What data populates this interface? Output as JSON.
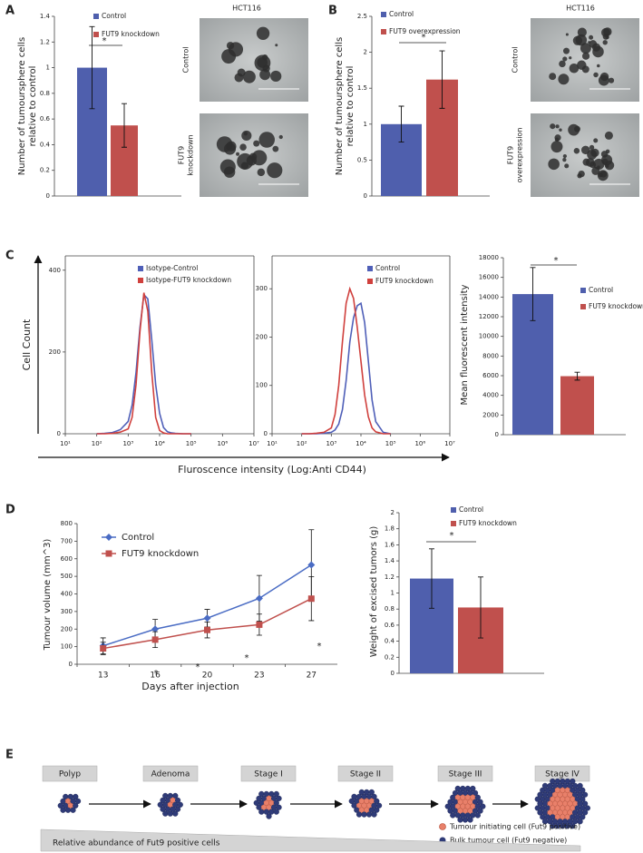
{
  "panels": [
    "A",
    "B",
    "C",
    "D",
    "E"
  ],
  "micrographs": [
    {
      "title": "HCT116",
      "labels": [
        [
          "Control"
        ],
        [
          "FUT9",
          "knockdown"
        ]
      ]
    },
    {
      "title": "HCT116",
      "labels": [
        [
          "Control"
        ],
        [
          "FUT9",
          "overexpression"
        ]
      ]
    }
  ],
  "panel_c": {
    "ylabel": "Cell Count",
    "xlabel": "Fluroscence intensity (Log:Anti CD44)"
  },
  "chart_data": [
    {
      "type": "bar",
      "ylabel": [
        "Number of tumoursphere cells",
        "relative to control"
      ],
      "series": [
        {
          "name": "Control",
          "color": "#4f5fad",
          "values": [
            1.0
          ],
          "errors": [
            0.32
          ]
        },
        {
          "name": "FUT9 knockdown",
          "color": "#c0504d",
          "values": [
            0.55
          ],
          "errors": [
            0.17
          ]
        }
      ],
      "ylim": [
        0,
        1.4
      ],
      "yticks": [
        0,
        0.2,
        0.4,
        0.6,
        0.8,
        1,
        1.2,
        1.4
      ],
      "annotations": [
        "*"
      ]
    },
    {
      "type": "bar",
      "ylabel": [
        "Number of tumoursphere cells",
        "relative to control"
      ],
      "series": [
        {
          "name": "Control",
          "color": "#4f5fad",
          "values": [
            1.0
          ],
          "errors": [
            0.25
          ]
        },
        {
          "name": "FUT9 overexpression",
          "color": "#c0504d",
          "values": [
            1.62
          ],
          "errors": [
            0.4
          ]
        }
      ],
      "ylim": [
        0,
        2.5
      ],
      "yticks": [
        0,
        0.5,
        1,
        1.5,
        2,
        2.5
      ],
      "annotations": [
        "*"
      ]
    },
    {
      "type": "line",
      "xscale": "log",
      "frame": true,
      "x": [
        100,
        178,
        316,
        562,
        1000,
        1334,
        1778,
        2371,
        3162,
        4217,
        5623,
        7499,
        10000,
        13335,
        17783,
        23714,
        31623,
        56234,
        100000
      ],
      "series": [
        {
          "name": "Isotype-Control",
          "color": "#4f5fb8",
          "values": [
            0,
            1,
            3,
            10,
            30,
            70,
            150,
            260,
            340,
            330,
            230,
            120,
            50,
            15,
            5,
            2,
            1,
            0,
            0
          ]
        },
        {
          "name": "Isotype-FUT9 knockdown",
          "color": "#d0403d",
          "values": [
            0,
            0,
            1,
            4,
            12,
            40,
            120,
            250,
            345,
            300,
            150,
            40,
            8,
            2,
            0,
            0,
            0,
            0,
            0
          ]
        }
      ],
      "xlim": [
        10,
        10000000
      ],
      "xticks": [
        {
          "value": 10,
          "label": "10¹"
        },
        {
          "value": 100,
          "label": "10²"
        },
        {
          "value": 1000,
          "label": "10³"
        },
        {
          "value": 10000,
          "label": "10⁴"
        },
        {
          "value": 100000,
          "label": "10⁵"
        },
        {
          "value": 1000000,
          "label": "10⁶"
        },
        {
          "value": 10000000,
          "label": "10⁷"
        }
      ],
      "ylim": [
        0,
        435
      ],
      "yticks": [
        0,
        200,
        400
      ]
    },
    {
      "type": "line",
      "xscale": "log",
      "frame": true,
      "x": [
        100,
        178,
        316,
        562,
        1000,
        1334,
        1778,
        2371,
        3162,
        4217,
        5623,
        7499,
        10000,
        13335,
        17783,
        23714,
        31623,
        56234,
        100000
      ],
      "series": [
        {
          "name": "Control",
          "color": "#4f5fb8",
          "values": [
            0,
            0,
            0,
            1,
            3,
            8,
            20,
            50,
            110,
            190,
            240,
            265,
            270,
            230,
            150,
            70,
            25,
            3,
            0
          ]
        },
        {
          "name": "FUT9 knockdown",
          "color": "#d0403d",
          "values": [
            0,
            0,
            1,
            3,
            12,
            40,
            100,
            190,
            270,
            300,
            280,
            220,
            150,
            80,
            35,
            12,
            4,
            0,
            0
          ]
        }
      ],
      "xlim": [
        10,
        10000000
      ],
      "xticks": [
        {
          "value": 10,
          "label": "10¹"
        },
        {
          "value": 100,
          "label": "10²"
        },
        {
          "value": 1000,
          "label": "10³"
        },
        {
          "value": 10000,
          "label": "10⁴"
        },
        {
          "value": 100000,
          "label": "10⁵"
        },
        {
          "value": 1000000,
          "label": "10⁶"
        },
        {
          "value": 10000000,
          "label": "10⁷"
        }
      ],
      "ylim": [
        0,
        368
      ],
      "yticks": [
        0,
        100,
        200,
        300
      ]
    },
    {
      "type": "bar",
      "ylabel": "Mean fluorescent intensity",
      "series": [
        {
          "name": "Control",
          "color": "#4f5fad",
          "values": [
            14300
          ],
          "errors": [
            2700
          ]
        },
        {
          "name": "FUT9 knockdown",
          "color": "#c0504d",
          "values": [
            5950
          ],
          "errors": [
            400
          ]
        }
      ],
      "ylim": [
        0,
        18000
      ],
      "yticks": [
        0,
        2000,
        4000,
        6000,
        8000,
        10000,
        12000,
        14000,
        16000,
        18000
      ],
      "annotations": [
        "*"
      ]
    },
    {
      "type": "line",
      "ylabel": "Tumour volume (mm^3)",
      "xlabel": "Days after injection",
      "categories": [
        13,
        16,
        20,
        23,
        27
      ],
      "series": [
        {
          "name": "Control",
          "color": "#4a6cc4",
          "marker": "diamond",
          "values": [
            105,
            200,
            262,
            375,
            565
          ],
          "errors": [
            45,
            55,
            50,
            130,
            200
          ]
        },
        {
          "name": "FUT9 knockdown",
          "color": "#c0504d",
          "marker": "square",
          "values": [
            90,
            140,
            195,
            225,
            373
          ],
          "errors": [
            35,
            45,
            45,
            60,
            125
          ]
        }
      ],
      "ylim": [
        0,
        800
      ],
      "yticks": [
        0,
        100,
        200,
        300,
        400,
        500,
        600,
        700,
        800
      ],
      "annotations": [
        "*",
        "*",
        "*",
        "*"
      ]
    },
    {
      "type": "bar",
      "ylabel": "Weight of excised tumors (g)",
      "series": [
        {
          "name": "Control",
          "color": "#4f5fad",
          "values": [
            1.18
          ],
          "errors": [
            0.37
          ]
        },
        {
          "name": "FUT9 knockdown",
          "color": "#c0504d",
          "values": [
            0.82
          ],
          "errors": [
            0.38
          ]
        }
      ],
      "ylim": [
        0,
        2
      ],
      "yticks": [
        0,
        0.2,
        0.4,
        0.6,
        0.8,
        1,
        1.2,
        1.4,
        1.6,
        1.8,
        2
      ],
      "annotations": [
        "*"
      ]
    }
  ],
  "diagram": {
    "stages": [
      "Polyp",
      "Adenoma",
      "Stage I",
      "Stage II",
      "Stage III",
      "Stage IV"
    ],
    "legend": [
      "Tumour initiating cell (Fut9 positive)",
      "Bulk tumour cell (Fut9 negative)"
    ],
    "gradient_label": "Relative abundance of Fut9 positive cells"
  }
}
